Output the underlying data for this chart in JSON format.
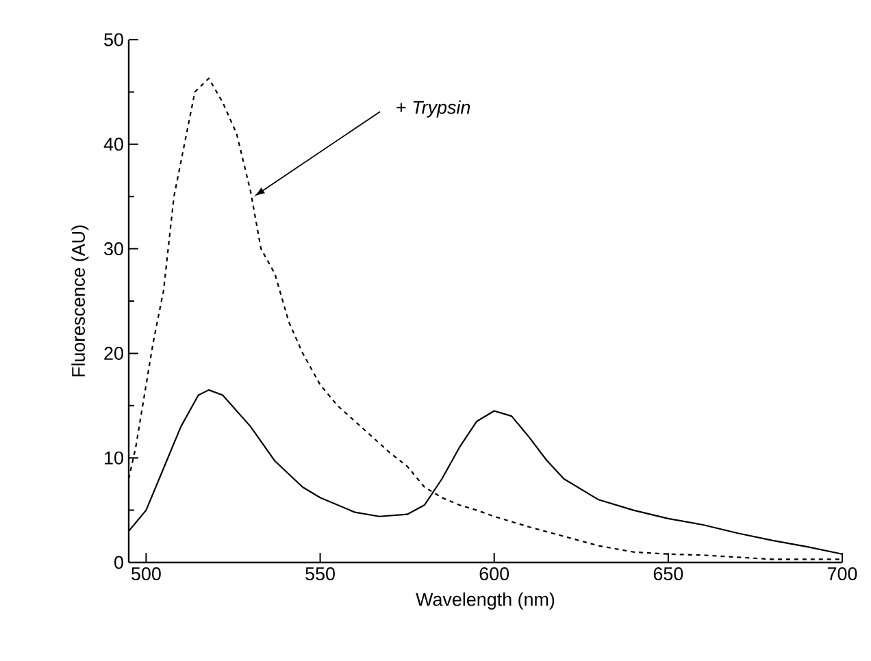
{
  "chart_data": {
    "type": "line",
    "xlabel": "Wavelength (nm)",
    "ylabel": "Fluorescence (AU)",
    "xlim": [
      495,
      700
    ],
    "ylim": [
      0,
      50
    ],
    "xticks": [
      500,
      550,
      600,
      650,
      700
    ],
    "yticks": [
      0,
      10,
      20,
      30,
      40,
      50
    ],
    "grid": false,
    "marker": "none",
    "series": [
      {
        "color": "#000000",
        "line_style": "solid",
        "x": [
          495,
          500,
          505,
          510,
          515,
          518,
          522,
          530,
          537,
          545,
          550,
          560,
          567,
          575,
          580,
          585,
          590,
          595,
          600,
          605,
          610,
          615,
          620,
          630,
          640,
          650,
          660,
          670,
          680,
          690,
          700
        ],
        "values": [
          3.0,
          5,
          9,
          13,
          16,
          16.5,
          16,
          13,
          9.7,
          7.2,
          6.2,
          4.8,
          4.4,
          4.6,
          5.5,
          8,
          11,
          13.5,
          14.5,
          14,
          12,
          9.8,
          8,
          6,
          5,
          4.2,
          3.6,
          2.8,
          2.1,
          1.5,
          0.8
        ]
      },
      {
        "color": "#000000",
        "line_style": "dashed",
        "x": [
          495,
          497,
          500,
          502,
          505,
          508,
          511,
          514,
          518,
          522,
          526,
          530,
          533,
          537,
          541,
          545,
          550,
          555,
          560,
          565,
          570,
          575,
          580,
          585,
          590,
          595,
          600,
          610,
          620,
          630,
          640,
          650,
          660,
          670,
          680,
          690,
          700
        ],
        "values": [
          8,
          11,
          17,
          21,
          26,
          35,
          40,
          45,
          46.3,
          44,
          41,
          35.5,
          30,
          27.6,
          23,
          20,
          17,
          15,
          13.5,
          12,
          10.5,
          9.2,
          7.2,
          6.2,
          5.5,
          5,
          4.4,
          3.4,
          2.5,
          1.6,
          1,
          0.8,
          0.7,
          0.5,
          0.3,
          0.3,
          0.3
        ]
      }
    ],
    "annotations": [
      {
        "text": "+ *Trypsin*",
        "x": 531,
        "y": 35
      }
    ]
  }
}
